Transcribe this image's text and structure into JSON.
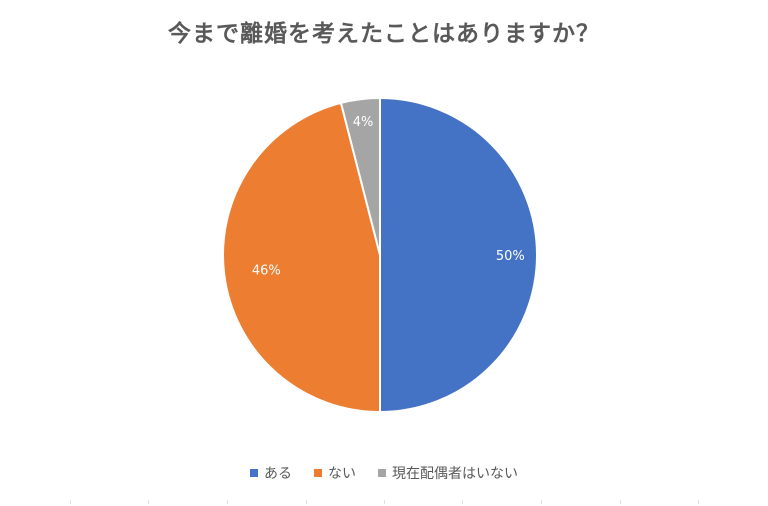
{
  "chart_data": {
    "type": "pie",
    "title": "今まで離婚を考えたことはありますか？",
    "categories": [
      "ある",
      "ない",
      "現在配偶者はいない"
    ],
    "values": [
      50,
      46,
      4
    ],
    "labels": [
      "50%",
      "46%",
      "4%"
    ],
    "colors": [
      "#4472C4",
      "#ED7D31",
      "#A5A5A5"
    ],
    "legend_position": "bottom"
  }
}
